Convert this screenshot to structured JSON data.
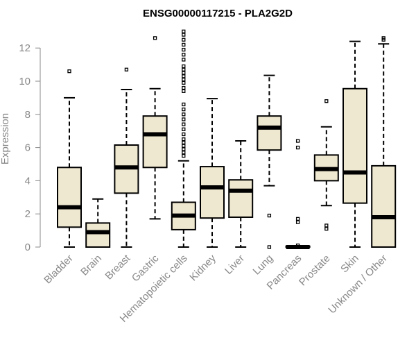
{
  "chart_data": {
    "type": "box",
    "title": "ENSG00000117215 - PLA2G2D",
    "xlabel": "",
    "ylabel": "Expression",
    "ylim": [
      0,
      12.6
    ],
    "yticks": [
      0,
      2,
      4,
      6,
      8,
      10,
      12
    ],
    "categories": [
      "Bladder",
      "Brain",
      "Breast",
      "Gastric",
      "Hematopoietic cells",
      "Kidney",
      "Liver",
      "Lung",
      "Pancreas",
      "Prostate",
      "Skin",
      "Unknown / Other"
    ],
    "boxes": [
      {
        "whisker_low": 0,
        "q1": 1.2,
        "median": 2.4,
        "q3": 4.8,
        "whisker_high": 9.0,
        "outliers": [
          10.6
        ]
      },
      {
        "whisker_low": 0,
        "q1": 0,
        "median": 0.9,
        "q3": 1.45,
        "whisker_high": 2.9,
        "outliers": []
      },
      {
        "whisker_low": 0,
        "q1": 3.25,
        "median": 4.8,
        "q3": 6.15,
        "whisker_high": 9.5,
        "outliers": [
          10.7
        ]
      },
      {
        "whisker_low": 1.7,
        "q1": 4.8,
        "median": 6.8,
        "q3": 7.9,
        "whisker_high": 9.55,
        "outliers": [
          12.6
        ]
      },
      {
        "whisker_low": 0,
        "q1": 1.05,
        "median": 1.9,
        "q3": 2.7,
        "whisker_high": 5.2,
        "outliers": [
          5.5,
          5.7,
          5.9,
          6.1,
          6.3,
          6.5,
          6.8,
          7.1,
          7.4,
          7.7,
          8.0,
          8.3,
          8.6,
          9.4,
          9.6,
          9.9,
          10.1,
          10.3,
          10.5,
          10.7,
          10.9,
          11.3,
          11.6,
          11.9,
          12.2,
          12.5,
          12.8,
          13.0
        ]
      },
      {
        "whisker_low": 0,
        "q1": 1.75,
        "median": 3.6,
        "q3": 4.85,
        "whisker_high": 8.95,
        "outliers": []
      },
      {
        "whisker_low": 0,
        "q1": 1.8,
        "median": 3.4,
        "q3": 4.05,
        "whisker_high": 6.4,
        "outliers": []
      },
      {
        "whisker_low": 3.7,
        "q1": 5.85,
        "median": 7.2,
        "q3": 7.9,
        "whisker_high": 10.35,
        "outliers": [
          1.9,
          0
        ]
      },
      {
        "whisker_low": 0,
        "q1": 0,
        "median": 0,
        "q3": 0.05,
        "whisker_high": 0.05,
        "outliers": [
          6.0,
          6.4,
          1.7,
          1.5,
          0.1
        ]
      },
      {
        "whisker_low": 2.5,
        "q1": 4.0,
        "median": 4.7,
        "q3": 5.55,
        "whisker_high": 7.25,
        "outliers": [
          8.8,
          1.3,
          1.1
        ]
      },
      {
        "whisker_low": 0,
        "q1": 2.65,
        "median": 4.5,
        "q3": 9.55,
        "whisker_high": 12.4,
        "outliers": []
      },
      {
        "whisker_low": 0,
        "q1": 0,
        "median": 1.8,
        "q3": 4.9,
        "whisker_high": 12.25,
        "outliers": [
          12.5,
          12.6
        ]
      }
    ]
  },
  "colors": {
    "box_fill": "#efe8d0",
    "stroke": "#000000",
    "axis": "#888888"
  }
}
